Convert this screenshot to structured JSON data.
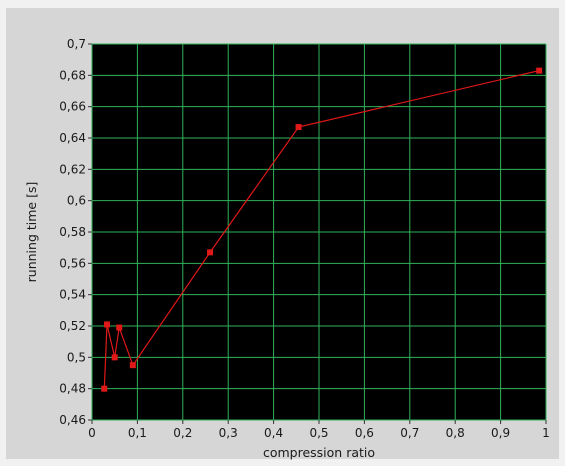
{
  "chart_data": {
    "type": "line",
    "title": "",
    "xlabel": "compression ratio",
    "ylabel": "running time  [s]",
    "xlim": [
      0,
      1
    ],
    "ylim": [
      0.46,
      0.7
    ],
    "x_ticks": [
      "0",
      "0,1",
      "0,2",
      "0,3",
      "0,4",
      "0,5",
      "0,6",
      "0,7",
      "0,8",
      "0,9",
      "1"
    ],
    "y_ticks": [
      "0,46",
      "0,48",
      "0,5",
      "0,52",
      "0,54",
      "0,56",
      "0,58",
      "0,6",
      "0,62",
      "0,64",
      "0,66",
      "0,68",
      "0,7"
    ],
    "grid": true,
    "colors": {
      "plot_background": "#000000",
      "grid": "#2fb35a",
      "series": "#e01818",
      "frame": "#d6d6d6"
    },
    "series": [
      {
        "points": [
          [
            0.027,
            0.48
          ],
          [
            0.033,
            0.521
          ],
          [
            0.05,
            0.5
          ],
          [
            0.06,
            0.519
          ],
          [
            0.09,
            0.495
          ],
          [
            0.26,
            0.567
          ],
          [
            0.455,
            0.647
          ],
          [
            0.985,
            0.683
          ]
        ]
      }
    ]
  }
}
